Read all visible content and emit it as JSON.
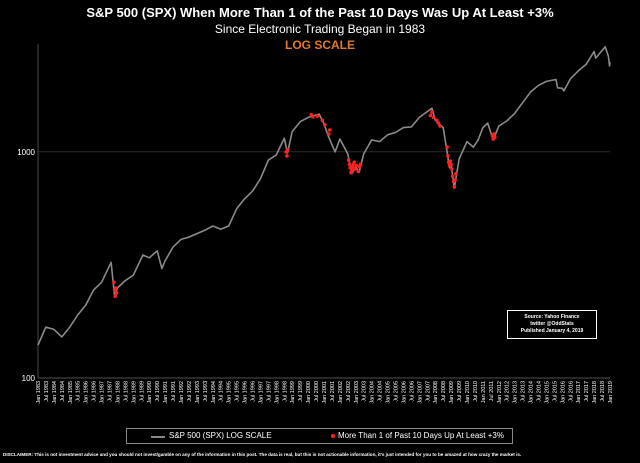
{
  "header": {
    "title": "S&P 500 (SPX) When More Than 1 of the Past 10 Days Was Up At Least +3%",
    "subtitle": "Since Electronic Trading Began in 1983",
    "scale_note": "LOG SCALE",
    "scale_note_color": "#e07a2a"
  },
  "source_box": {
    "line1": "Source: Yahoo Finance",
    "line2": "twitter @OddStats",
    "line3": "Published January 4, 2019"
  },
  "legend": {
    "series1": "S&P 500 (SPX) LOG SCALE",
    "series2": "More Than 1 of Past 10 Days Up At Least +3%"
  },
  "disclaimer": "DISCLAIMER: This is not investment advice and you should not invest/gamble on any of the information in this post.  The data is real, but this is not actionable information, it's just intended for you to be amazed at how crazy the market is.",
  "colors": {
    "background": "#000000",
    "line": "#8a8a8a",
    "highlight": "#ff2020",
    "grid": "#555555"
  },
  "chart_data": {
    "type": "line",
    "y_scale": "log",
    "ylim": [
      100,
      3000
    ],
    "yticks": [
      100,
      1000
    ],
    "ytick_labels": [
      "100",
      "1000"
    ],
    "xlim": [
      1983.0,
      2019.0
    ],
    "x_tick_labels": [
      "Jan 1983",
      "Jul 1983",
      "Jan 1984",
      "Jul 1984",
      "Jan 1985",
      "Jul 1985",
      "Jan 1986",
      "Jul 1986",
      "Jan 1987",
      "Jul 1987",
      "Jan 1988",
      "Jul 1988",
      "Jan 1989",
      "Jul 1989",
      "Jan 1990",
      "Jul 1990",
      "Jan 1991",
      "Jul 1991",
      "Jan 1992",
      "Jul 1992",
      "Jan 1993",
      "Jul 1993",
      "Jan 1994",
      "Jul 1994",
      "Jan 1995",
      "Jul 1995",
      "Jan 1996",
      "Jul 1996",
      "Jan 1997",
      "Jul 1997",
      "Jan 1998",
      "Jul 1998",
      "Jan 1999",
      "Jul 1999",
      "Jan 2000",
      "Jul 2000",
      "Jan 2001",
      "Jul 2001",
      "Jan 2002",
      "Jul 2002",
      "Jan 2003",
      "Jul 2003",
      "Jan 2004",
      "Jul 2004",
      "Jan 2005",
      "Jul 2005",
      "Jan 2006",
      "Jul 2006",
      "Jan 2007",
      "Jul 2007",
      "Jan 2008",
      "Jul 2008",
      "Jan 2009",
      "Jul 2009",
      "Jan 2010",
      "Jul 2010",
      "Jan 2011",
      "Jul 2011",
      "Jan 2012",
      "Jul 2012",
      "Jan 2013",
      "Jul 2013",
      "Jan 2014",
      "Jul 2014",
      "Jan 2015",
      "Jul 2015",
      "Jan 2016",
      "Jul 2016",
      "Jan 2017",
      "Jul 2017",
      "Jan 2018",
      "Jul 2018",
      "Jan 2019"
    ],
    "series": [
      {
        "name": "S&P 500 (SPX) LOG SCALE",
        "points": [
          [
            1983.0,
            140
          ],
          [
            1983.5,
            168
          ],
          [
            1984.0,
            164
          ],
          [
            1984.5,
            152
          ],
          [
            1985.0,
            168
          ],
          [
            1985.5,
            190
          ],
          [
            1986.0,
            210
          ],
          [
            1986.5,
            245
          ],
          [
            1987.0,
            265
          ],
          [
            1987.6,
            325
          ],
          [
            1987.83,
            228
          ],
          [
            1988.0,
            250
          ],
          [
            1988.5,
            270
          ],
          [
            1989.0,
            285
          ],
          [
            1989.6,
            350
          ],
          [
            1990.0,
            340
          ],
          [
            1990.5,
            365
          ],
          [
            1990.8,
            305
          ],
          [
            1991.0,
            330
          ],
          [
            1991.5,
            380
          ],
          [
            1992.0,
            410
          ],
          [
            1992.5,
            420
          ],
          [
            1993.0,
            435
          ],
          [
            1993.5,
            450
          ],
          [
            1994.0,
            470
          ],
          [
            1994.5,
            455
          ],
          [
            1995.0,
            470
          ],
          [
            1995.5,
            560
          ],
          [
            1996.0,
            620
          ],
          [
            1996.5,
            670
          ],
          [
            1997.0,
            760
          ],
          [
            1997.5,
            920
          ],
          [
            1998.0,
            970
          ],
          [
            1998.5,
            1150
          ],
          [
            1998.7,
            990
          ],
          [
            1999.0,
            1230
          ],
          [
            1999.5,
            1360
          ],
          [
            2000.0,
            1420
          ],
          [
            2000.7,
            1470
          ],
          [
            2001.0,
            1330
          ],
          [
            2001.3,
            1160
          ],
          [
            2001.7,
            1000
          ],
          [
            2002.0,
            1140
          ],
          [
            2002.5,
            980
          ],
          [
            2002.75,
            800
          ],
          [
            2003.0,
            860
          ],
          [
            2003.2,
            810
          ],
          [
            2003.5,
            980
          ],
          [
            2004.0,
            1130
          ],
          [
            2004.5,
            1110
          ],
          [
            2005.0,
            1190
          ],
          [
            2005.5,
            1220
          ],
          [
            2006.0,
            1280
          ],
          [
            2006.5,
            1290
          ],
          [
            2007.0,
            1420
          ],
          [
            2007.8,
            1560
          ],
          [
            2008.0,
            1380
          ],
          [
            2008.5,
            1280
          ],
          [
            2008.75,
            1000
          ],
          [
            2008.9,
            850
          ],
          [
            2009.0,
            880
          ],
          [
            2009.2,
            690
          ],
          [
            2009.5,
            930
          ],
          [
            2010.0,
            1110
          ],
          [
            2010.4,
            1050
          ],
          [
            2010.7,
            1130
          ],
          [
            2011.0,
            1280
          ],
          [
            2011.3,
            1340
          ],
          [
            2011.65,
            1130
          ],
          [
            2012.0,
            1300
          ],
          [
            2012.5,
            1370
          ],
          [
            2013.0,
            1480
          ],
          [
            2013.5,
            1650
          ],
          [
            2014.0,
            1840
          ],
          [
            2014.5,
            1970
          ],
          [
            2015.0,
            2050
          ],
          [
            2015.6,
            2090
          ],
          [
            2015.7,
            1920
          ],
          [
            2016.0,
            1910
          ],
          [
            2016.1,
            1860
          ],
          [
            2016.5,
            2100
          ],
          [
            2017.0,
            2280
          ],
          [
            2017.5,
            2440
          ],
          [
            2018.0,
            2780
          ],
          [
            2018.1,
            2600
          ],
          [
            2018.7,
            2920
          ],
          [
            2018.9,
            2650
          ],
          [
            2018.97,
            2400
          ],
          [
            2019.0,
            2500
          ]
        ]
      },
      {
        "name": "More Than 1 of Past 10 Days Up At Least +3%",
        "points": [
          [
            1987.78,
            265
          ],
          [
            1987.82,
            245
          ],
          [
            1987.86,
            230
          ],
          [
            1987.9,
            250
          ],
          [
            1987.94,
            238
          ],
          [
            1998.62,
            1000
          ],
          [
            1998.67,
            960
          ],
          [
            1998.72,
            1020
          ],
          [
            2000.2,
            1460
          ],
          [
            2000.3,
            1430
          ],
          [
            2000.6,
            1440
          ],
          [
            2000.9,
            1380
          ],
          [
            2001.05,
            1320
          ],
          [
            2001.3,
            1200
          ],
          [
            2001.35,
            1250
          ],
          [
            2002.55,
            920
          ],
          [
            2002.6,
            880
          ],
          [
            2002.65,
            850
          ],
          [
            2002.7,
            810
          ],
          [
            2002.75,
            830
          ],
          [
            2002.8,
            860
          ],
          [
            2002.85,
            880
          ],
          [
            2002.9,
            900
          ],
          [
            2002.95,
            840
          ],
          [
            2003.05,
            870
          ],
          [
            2003.15,
            820
          ],
          [
            2003.25,
            860
          ],
          [
            2003.3,
            880
          ],
          [
            2007.7,
            1450
          ],
          [
            2007.8,
            1500
          ],
          [
            2007.9,
            1420
          ],
          [
            2008.1,
            1380
          ],
          [
            2008.2,
            1340
          ],
          [
            2008.3,
            1300
          ],
          [
            2008.75,
            1050
          ],
          [
            2008.8,
            960
          ],
          [
            2008.85,
            900
          ],
          [
            2008.9,
            870
          ],
          [
            2008.95,
            910
          ],
          [
            2009.0,
            880
          ],
          [
            2009.05,
            840
          ],
          [
            2009.1,
            780
          ],
          [
            2009.15,
            740
          ],
          [
            2009.2,
            700
          ],
          [
            2009.25,
            750
          ],
          [
            2009.3,
            800
          ],
          [
            2011.6,
            1180
          ],
          [
            2011.65,
            1140
          ],
          [
            2011.7,
            1200
          ],
          [
            2011.75,
            1160
          ]
        ]
      }
    ]
  }
}
